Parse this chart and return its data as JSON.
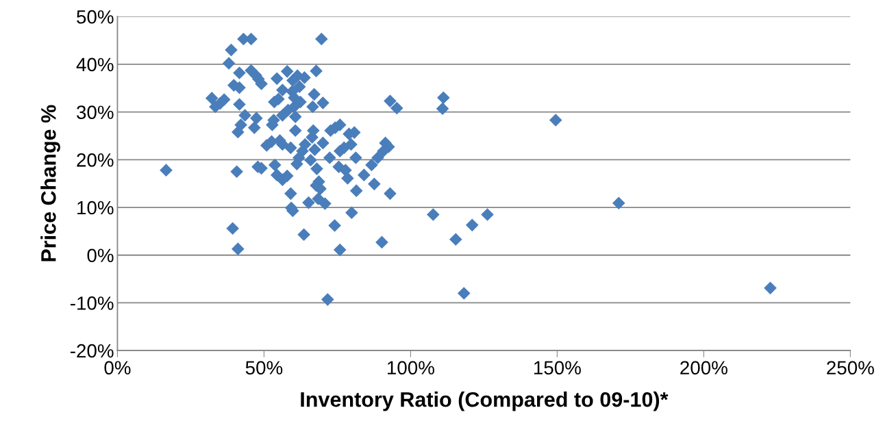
{
  "chart_data": {
    "type": "scatter",
    "xlabel": "Inventory Ratio (Compared to 09-10)*",
    "ylabel": "Price Change %",
    "color": "#4a7ebb",
    "marker": "diamond",
    "grid": "y",
    "xlim": [
      0,
      250
    ],
    "ylim": [
      -20,
      50
    ],
    "xticks": [
      {
        "value": 0,
        "label": "0%"
      },
      {
        "value": 50,
        "label": "50%"
      },
      {
        "value": 100,
        "label": "100%"
      },
      {
        "value": 150,
        "label": "150%"
      },
      {
        "value": 200,
        "label": "200%"
      },
      {
        "value": 250,
        "label": "250%"
      }
    ],
    "yticks": [
      {
        "value": -20,
        "label": "-20%"
      },
      {
        "value": -10,
        "label": "-10%"
      },
      {
        "value": 0,
        "label": "0%"
      },
      {
        "value": 10,
        "label": "10%"
      },
      {
        "value": 20,
        "label": "20%"
      },
      {
        "value": 30,
        "label": "30%"
      },
      {
        "value": 40,
        "label": "40%"
      },
      {
        "value": 50,
        "label": "50%"
      }
    ],
    "x": [
      16.6,
      32.2,
      33.4,
      35.0,
      36.4,
      38.0,
      38.8,
      39.7,
      41.6,
      39.3,
      41.1,
      40.7,
      41.1,
      41.6,
      42.1,
      41.6,
      43.5,
      43.0,
      45.6,
      45.6,
      47.2,
      48.1,
      49.1,
      46.7,
      47.4,
      47.9,
      49.1,
      50.9,
      52.6,
      52.8,
      53.3,
      53.5,
      54.9,
      54.4,
      53.7,
      54.4,
      55.4,
      56.3,
      56.3,
      57.9,
      56.3,
      56.3,
      58.2,
      57.9,
      59.1,
      59.1,
      59.3,
      59.8,
      59.6,
      60.3,
      60.3,
      60.7,
      59.8,
      60.7,
      61.4,
      62.1,
      62.4,
      61.2,
      61.9,
      63.1,
      63.8,
      63.6,
      64.0,
      65.2,
      65.9,
      66.4,
      66.6,
      67.1,
      67.8,
      66.8,
      67.3,
      68.0,
      67.8,
      68.7,
      69.2,
      68.5,
      69.6,
      70.1,
      70.1,
      70.8,
      71.7,
      72.4,
      72.7,
      74.3,
      74.1,
      75.9,
      75.5,
      75.9,
      75.9,
      77.3,
      77.8,
      78.5,
      79.0,
      79.7,
      79.9,
      80.8,
      81.3,
      81.5,
      84.1,
      86.7,
      87.6,
      88.8,
      90.2,
      90.7,
      91.4,
      92.5,
      93.0,
      93.0,
      95.3,
      107.7,
      111.2,
      110.9,
      115.4,
      118.2,
      121.0,
      126.2,
      149.5,
      171.0,
      222.7
    ],
    "values": [
      17.8,
      32.9,
      31.1,
      31.8,
      32.6,
      40.2,
      43.0,
      35.6,
      35.1,
      5.6,
      1.3,
      17.5,
      25.8,
      31.6,
      27.3,
      38.2,
      29.3,
      45.3,
      45.3,
      38.7,
      37.7,
      36.9,
      35.9,
      26.7,
      28.7,
      18.5,
      18.2,
      23.0,
      23.8,
      27.3,
      28.3,
      32.1,
      32.7,
      37.0,
      18.9,
      16.8,
      24.0,
      23.2,
      15.8,
      16.6,
      29.3,
      34.6,
      30.4,
      38.5,
      22.5,
      12.9,
      9.9,
      9.3,
      34.3,
      33.0,
      31.1,
      29.0,
      36.6,
      26.1,
      37.6,
      35.3,
      32.1,
      19.1,
      20.4,
      21.8,
      37.2,
      4.3,
      23.2,
      11.0,
      19.9,
      24.7,
      31.1,
      33.7,
      38.6,
      26.1,
      22.1,
      18.1,
      14.6,
      15.4,
      13.9,
      11.8,
      45.3,
      31.9,
      23.5,
      10.8,
      -9.3,
      20.4,
      26.1,
      26.7,
      6.2,
      1.1,
      18.5,
      27.3,
      21.8,
      22.5,
      17.8,
      16.1,
      25.4,
      23.2,
      8.9,
      25.7,
      20.4,
      13.5,
      16.8,
      18.9,
      14.9,
      20.4,
      2.7,
      21.8,
      23.5,
      22.7,
      32.3,
      12.9,
      30.8,
      8.5,
      33.0,
      30.7,
      3.3,
      -8.0,
      6.3,
      8.5,
      28.3,
      10.9,
      -6.9
    ]
  }
}
